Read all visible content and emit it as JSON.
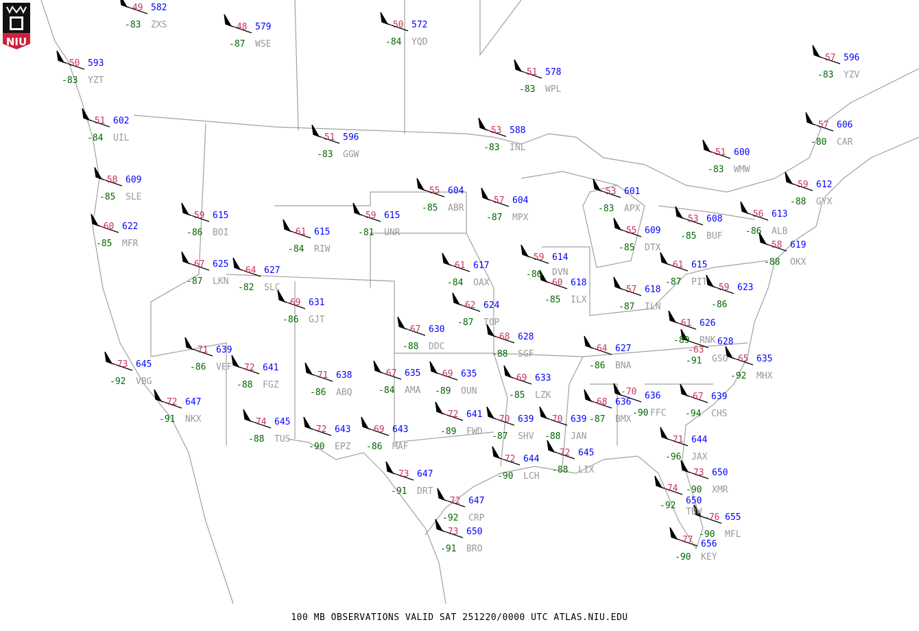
{
  "logo": {
    "text": "NIU"
  },
  "colors": {
    "temperature": "#cc3355",
    "height": "#0000ff",
    "dewpoint": "#006600",
    "station_id": "#999999",
    "map_lines": "#a0a0a0",
    "logo_red": "#d0203a"
  },
  "caption": "100 MB OBSERVATIONS VALID  SAT 251220/0000 UTC  ATLAS.NIU.EDU",
  "stations": [
    {
      "id": "ZXS",
      "t": "-49",
      "h": "582",
      "d": "-83"
    },
    {
      "id": "WSE",
      "t": "-48",
      "h": "579",
      "d": "-87"
    },
    {
      "id": "YZT",
      "t": "-50",
      "h": "593",
      "d": "-83"
    },
    {
      "id": "UIL",
      "t": "-51",
      "h": "602",
      "d": "-84"
    },
    {
      "id": "YQD",
      "t": "-50",
      "h": "572",
      "d": "-84"
    },
    {
      "id": "WPL",
      "t": "-51",
      "h": "578",
      "d": "-83"
    },
    {
      "id": "INL",
      "t": "-53",
      "h": "588",
      "d": "-83"
    },
    {
      "id": "GGW",
      "t": "-51",
      "h": "596",
      "d": "-83"
    },
    {
      "id": "SLE",
      "t": "-58",
      "h": "609",
      "d": "-85"
    },
    {
      "id": "BOI",
      "t": "-59",
      "h": "615",
      "d": "-86"
    },
    {
      "id": "MFR",
      "t": "-60",
      "h": "622",
      "d": "-85"
    },
    {
      "id": "RIW",
      "t": "-61",
      "h": "615",
      "d": "-84"
    },
    {
      "id": "UNR",
      "t": "-59",
      "h": "615",
      "d": "-81"
    },
    {
      "id": "ABR",
      "t": "-55",
      "h": "604",
      "d": "-85"
    },
    {
      "id": "MPX",
      "t": "-57",
      "h": "604",
      "d": "-87"
    },
    {
      "id": "APX",
      "t": "-53",
      "h": "601",
      "d": "-83"
    },
    {
      "id": "WMW",
      "t": "-51",
      "h": "600",
      "d": "-83"
    },
    {
      "id": "YZV",
      "t": "-57",
      "h": "596",
      "d": "-83"
    },
    {
      "id": "CAR",
      "t": "-57",
      "h": "606",
      "d": "-80"
    },
    {
      "id": "GYX",
      "t": "-59",
      "h": "612",
      "d": "-88"
    },
    {
      "id": "ALB",
      "t": "-56",
      "h": "613",
      "d": "-86"
    },
    {
      "id": "BUF",
      "t": "-53",
      "h": "608",
      "d": "-85"
    },
    {
      "id": "DTX",
      "t": "-55",
      "h": "609",
      "d": "-85"
    },
    {
      "id": "OKX",
      "t": "-58",
      "h": "619",
      "d": "-88"
    },
    {
      "id": "PIT",
      "t": "-61",
      "h": "615",
      "d": "-87"
    },
    {
      "id": "ILN",
      "t": "-57",
      "h": "618",
      "d": "-87"
    },
    {
      "id": "ILX",
      "t": "-60",
      "h": "618",
      "d": "-85"
    },
    {
      "id": "DVN",
      "t": "-59",
      "h": "614",
      "d": "-86"
    },
    {
      "id": "OAX",
      "t": "-61",
      "h": "617",
      "d": "-84"
    },
    {
      "id": "TOP",
      "t": "-62",
      "h": "624",
      "d": "-87"
    },
    {
      "id": "LKN",
      "t": "-67",
      "h": "625",
      "d": "-87"
    },
    {
      "id": "SLC",
      "t": "-64",
      "h": "627",
      "d": "-82"
    },
    {
      "id": "GJT",
      "t": "-69",
      "h": "631",
      "d": "-86"
    },
    {
      "id": "",
      "t": "-59",
      "h": "623",
      "d": "-86"
    },
    {
      "id": "RNK",
      "t": "-61",
      "h": "626",
      "d": "-89"
    },
    {
      "id": "GSO",
      "t": "-63",
      "h": "628",
      "d": "-91"
    },
    {
      "id": "MHX",
      "t": "-65",
      "h": "635",
      "d": "-92"
    },
    {
      "id": "DDC",
      "t": "-67",
      "h": "630",
      "d": "-88"
    },
    {
      "id": "SGF",
      "t": "-68",
      "h": "628",
      "d": "-88"
    },
    {
      "id": "BNA",
      "t": "-64",
      "h": "627",
      "d": "-86"
    },
    {
      "id": "VEF",
      "t": "-71",
      "h": "639",
      "d": "-86"
    },
    {
      "id": "FGZ",
      "t": "-72",
      "h": "641",
      "d": "-88"
    },
    {
      "id": "VBG",
      "t": "-73",
      "h": "645",
      "d": "-92"
    },
    {
      "id": "NKX",
      "t": "-72",
      "h": "647",
      "d": "-91"
    },
    {
      "id": "ABQ",
      "t": "-71",
      "h": "638",
      "d": "-86"
    },
    {
      "id": "AMA",
      "t": "-67",
      "h": "635",
      "d": "-84"
    },
    {
      "id": "OUN",
      "t": "-69",
      "h": "635",
      "d": "-89"
    },
    {
      "id": "LZK",
      "t": "-69",
      "h": "633",
      "d": "-85"
    },
    {
      "id": "TUS",
      "t": "-74",
      "h": "645",
      "d": "-88"
    },
    {
      "id": "EPZ",
      "t": "-72",
      "h": "643",
      "d": "-90"
    },
    {
      "id": "MAF",
      "t": "-69",
      "h": "643",
      "d": "-86"
    },
    {
      "id": "FWD",
      "t": "-72",
      "h": "641",
      "d": "-89"
    },
    {
      "id": "SHV",
      "t": "-70",
      "h": "639",
      "d": "-87"
    },
    {
      "id": "JAN",
      "t": "-70",
      "h": "639",
      "d": "-88"
    },
    {
      "id": "BMX",
      "t": "-68",
      "h": "636",
      "d": "-87"
    },
    {
      "id": "FFC",
      "t": "-70",
      "h": "636",
      "d": "-90"
    },
    {
      "id": "CHS",
      "t": "-67",
      "h": "639",
      "d": "-94"
    },
    {
      "id": "JAX",
      "t": "-71",
      "h": "644",
      "d": "-96"
    },
    {
      "id": "LCH",
      "t": "-72",
      "h": "644",
      "d": "-90"
    },
    {
      "id": "LIX",
      "t": "-72",
      "h": "645",
      "d": "-88"
    },
    {
      "id": "XMR",
      "t": "-73",
      "h": "650",
      "d": "-90"
    },
    {
      "id": "TBW",
      "t": "-74",
      "h": "650",
      "d": "-92"
    },
    {
      "id": "MFL",
      "t": "-76",
      "h": "655",
      "d": "-90"
    },
    {
      "id": "KEY",
      "t": "-77",
      "h": "656",
      "d": "-90"
    },
    {
      "id": "DRT",
      "t": "-73",
      "h": "647",
      "d": "-91"
    },
    {
      "id": "CRP",
      "t": "-72",
      "h": "647",
      "d": "-92"
    },
    {
      "id": "BRO",
      "t": "-73",
      "h": "650",
      "d": "-91"
    }
  ]
}
